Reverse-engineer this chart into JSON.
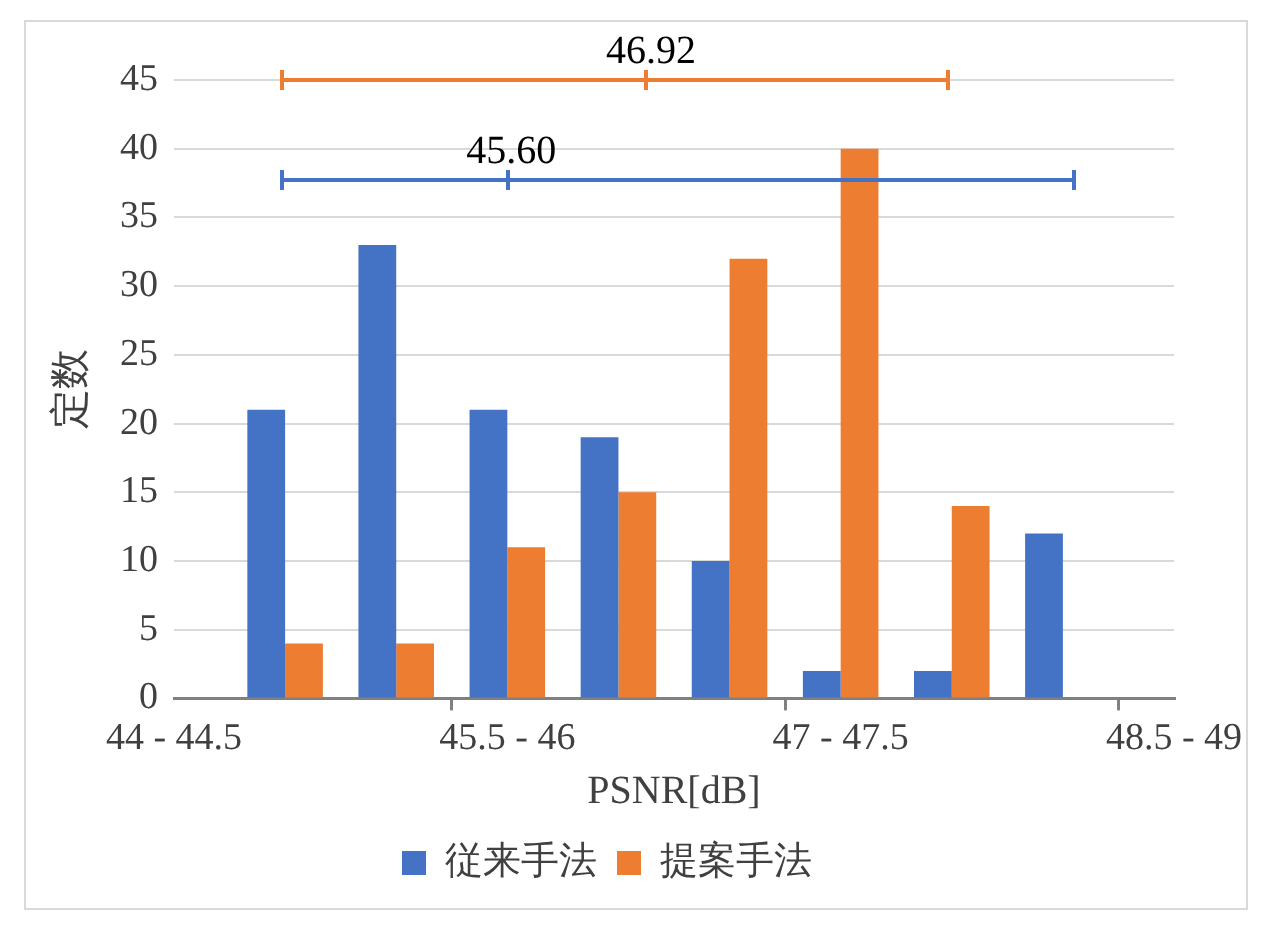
{
  "chart_data": {
    "type": "bar",
    "categories": [
      "44 - 44.5",
      null,
      null,
      "45.5 - 46",
      null,
      null,
      "47 - 47.5",
      null,
      null,
      "48.5 - 49"
    ],
    "series": [
      {
        "name": "従来手法",
        "color": "#4472c4",
        "values": [
          null,
          21,
          33,
          21,
          19,
          10,
          2,
          2,
          12,
          null
        ]
      },
      {
        "name": "提案手法",
        "color": "#ed7d31",
        "values": [
          null,
          4,
          4,
          11,
          15,
          32,
          40,
          14,
          null,
          null
        ]
      }
    ],
    "xlabel": "PSNR[dB]",
    "ylabel": "定数",
    "ylim": [
      0,
      45
    ],
    "yticks": [
      0,
      5,
      10,
      15,
      20,
      25,
      30,
      35,
      40,
      45
    ],
    "annotations": [
      "46.92",
      "45.60"
    ],
    "grid": "y",
    "legend": "bottom"
  }
}
